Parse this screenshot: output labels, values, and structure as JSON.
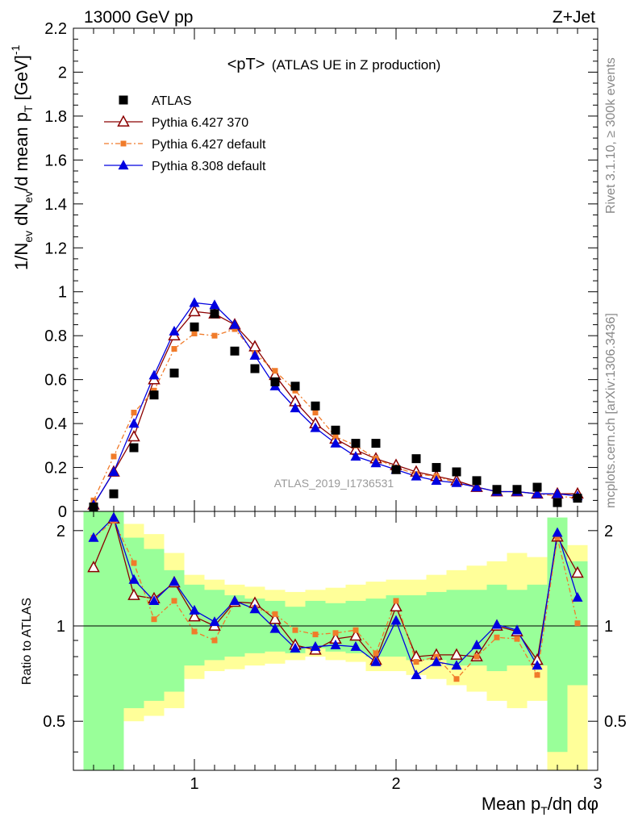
{
  "header": {
    "left": "13000 GeV pp",
    "right": "Z+Jet",
    "side_top": "Rivet 3.1.10, ≥ 300k events",
    "side_bottom": "mcplots.cern.ch [arXiv:1306.3436]",
    "watermark": "ATLAS_2019_I1736531"
  },
  "chart_data": [
    {
      "type": "scatter",
      "title_main": "<pT>",
      "title_sub": "(ATLAS UE in Z production)",
      "ylabel": "1/N_ev dN_ev/d mean p_T [GeV]^-1",
      "xlabel": "Mean p_T/dη dφ",
      "xlim": [
        0.4,
        3.0
      ],
      "ylim": [
        0,
        2.2
      ],
      "yticks": [
        "0",
        "0.2",
        "0.4",
        "0.6",
        "0.8",
        "1",
        "1.2",
        "1.4",
        "1.6",
        "1.8",
        "2",
        "2.2"
      ],
      "x": [
        0.5,
        0.6,
        0.7,
        0.8,
        0.9,
        1.0,
        1.1,
        1.2,
        1.3,
        1.4,
        1.5,
        1.6,
        1.7,
        1.8,
        1.9,
        2.0,
        2.1,
        2.2,
        2.3,
        2.4,
        2.5,
        2.6,
        2.7,
        2.8,
        2.9
      ],
      "series": [
        {
          "name": "ATLAS",
          "color": "#000000",
          "marker": "square",
          "values": [
            0.02,
            0.08,
            0.29,
            0.53,
            0.63,
            0.84,
            0.9,
            0.73,
            0.65,
            0.59,
            0.57,
            0.48,
            0.37,
            0.31,
            0.31,
            0.19,
            0.24,
            0.2,
            0.18,
            0.14,
            0.1,
            0.1,
            0.11,
            0.04,
            0.06
          ]
        },
        {
          "name": "Pythia 6.427 370",
          "color": "#8b0000",
          "marker": "open-triangle",
          "values": [
            0.03,
            0.18,
            0.34,
            0.6,
            0.8,
            0.91,
            0.9,
            0.85,
            0.75,
            0.62,
            0.5,
            0.4,
            0.33,
            0.28,
            0.24,
            0.21,
            0.18,
            0.16,
            0.14,
            0.11,
            0.09,
            0.09,
            0.08,
            0.08,
            0.08
          ]
        },
        {
          "name": "Pythia 6.427 default",
          "color": "#f07b2a",
          "marker": "square",
          "values": [
            0.05,
            0.25,
            0.45,
            0.55,
            0.74,
            0.81,
            0.8,
            0.83,
            0.72,
            0.64,
            0.55,
            0.45,
            0.34,
            0.3,
            0.24,
            0.2,
            0.17,
            0.16,
            0.13,
            0.11,
            0.09,
            0.09,
            0.08,
            0.07,
            0.06
          ]
        },
        {
          "name": "Pythia 8.308 default",
          "color": "#0000e0",
          "marker": "triangle",
          "values": [
            0.03,
            0.18,
            0.4,
            0.62,
            0.82,
            0.95,
            0.94,
            0.85,
            0.71,
            0.57,
            0.47,
            0.38,
            0.31,
            0.25,
            0.22,
            0.19,
            0.16,
            0.14,
            0.13,
            0.11,
            0.09,
            0.09,
            0.08,
            0.08,
            0.07
          ]
        }
      ]
    },
    {
      "type": "scatter",
      "ylabel": "Ratio to ATLAS",
      "xlim": [
        0.4,
        3.0
      ],
      "ylim": [
        0.35,
        2.3
      ],
      "log_y": true,
      "yticks": [
        "0.5",
        "1",
        "2"
      ],
      "xticks": [
        "1",
        "2",
        "3"
      ],
      "x": [
        0.5,
        0.6,
        0.7,
        0.8,
        0.9,
        1.0,
        1.1,
        1.2,
        1.3,
        1.4,
        1.5,
        1.6,
        1.7,
        1.8,
        1.9,
        2.0,
        2.1,
        2.2,
        2.3,
        2.4,
        2.5,
        2.6,
        2.7,
        2.8,
        2.9
      ],
      "band_green": [
        [
          0.35,
          2.3
        ],
        [
          0.35,
          2.3
        ],
        [
          0.55,
          1.9
        ],
        [
          0.58,
          1.75
        ],
        [
          0.62,
          1.5
        ],
        [
          0.75,
          1.35
        ],
        [
          0.78,
          1.3
        ],
        [
          0.8,
          1.25
        ],
        [
          0.82,
          1.22
        ],
        [
          0.83,
          1.2
        ],
        [
          0.82,
          1.15
        ],
        [
          0.85,
          1.2
        ],
        [
          0.83,
          1.18
        ],
        [
          0.82,
          1.2
        ],
        [
          0.8,
          1.22
        ],
        [
          0.8,
          1.25
        ],
        [
          0.78,
          1.25
        ],
        [
          0.78,
          1.28
        ],
        [
          0.75,
          1.3
        ],
        [
          0.75,
          1.3
        ],
        [
          0.72,
          1.35
        ],
        [
          0.75,
          1.3
        ],
        [
          0.75,
          1.35
        ],
        [
          0.4,
          2.2
        ],
        [
          0.65,
          1.6
        ]
      ],
      "band_yellow": [
        [
          0.35,
          2.3
        ],
        [
          0.35,
          2.3
        ],
        [
          0.5,
          2.1
        ],
        [
          0.52,
          1.95
        ],
        [
          0.55,
          1.7
        ],
        [
          0.68,
          1.45
        ],
        [
          0.72,
          1.4
        ],
        [
          0.73,
          1.35
        ],
        [
          0.75,
          1.33
        ],
        [
          0.76,
          1.3
        ],
        [
          0.78,
          1.28
        ],
        [
          0.8,
          1.3
        ],
        [
          0.78,
          1.32
        ],
        [
          0.77,
          1.35
        ],
        [
          0.72,
          1.38
        ],
        [
          0.72,
          1.4
        ],
        [
          0.7,
          1.4
        ],
        [
          0.68,
          1.45
        ],
        [
          0.65,
          1.5
        ],
        [
          0.62,
          1.55
        ],
        [
          0.58,
          1.6
        ],
        [
          0.55,
          1.7
        ],
        [
          0.58,
          1.65
        ],
        [
          0.35,
          2.1
        ],
        [
          0.35,
          1.8
        ]
      ],
      "series": [
        {
          "name": "Pythia 6.427 370",
          "color": "#8b0000",
          "marker": "open-triangle",
          "values": [
            1.53,
            2.18,
            1.25,
            1.22,
            1.37,
            1.07,
            1.0,
            1.19,
            1.18,
            1.05,
            0.87,
            0.84,
            0.91,
            0.93,
            0.78,
            1.15,
            0.8,
            0.81,
            0.81,
            0.8,
            1.0,
            0.96,
            0.78,
            1.91,
            1.47
          ]
        },
        {
          "name": "Pythia 6.427 default",
          "color": "#f07b2a",
          "marker": "square",
          "values": [
            1.9,
            2.15,
            1.58,
            1.05,
            1.2,
            0.96,
            0.9,
            1.19,
            1.14,
            1.09,
            0.97,
            0.94,
            0.95,
            0.97,
            0.82,
            1.2,
            0.77,
            0.8,
            0.68,
            0.8,
            0.92,
            0.91,
            0.7,
            1.9,
            1.02
          ]
        },
        {
          "name": "Pythia 8.308 default",
          "color": "#0000e0",
          "marker": "triangle",
          "values": [
            1.9,
            2.2,
            1.4,
            1.2,
            1.38,
            1.12,
            1.03,
            1.2,
            1.13,
            0.98,
            0.85,
            0.86,
            0.87,
            0.86,
            0.77,
            1.04,
            0.7,
            0.77,
            0.75,
            0.87,
            1.01,
            0.97,
            0.75,
            1.97,
            1.23
          ]
        }
      ]
    }
  ]
}
